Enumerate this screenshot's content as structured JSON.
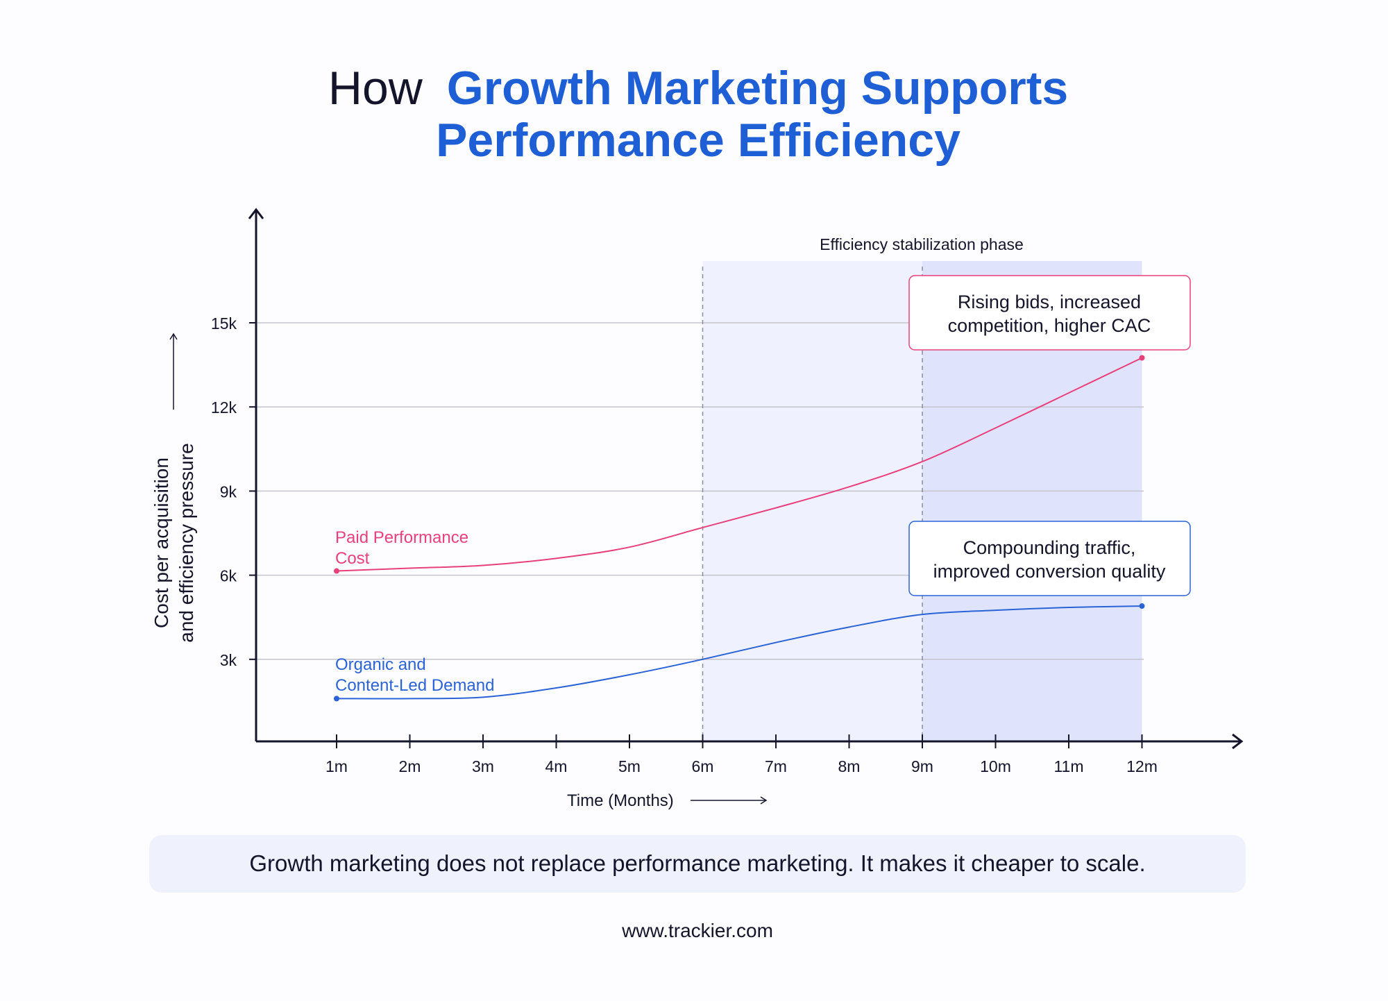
{
  "title": {
    "prefix": "How",
    "highlight_line1": "Growth Marketing Supports",
    "highlight_line2": "Performance Efficiency"
  },
  "colors": {
    "title_dark": "#14142b",
    "title_blue": "#1f5fd6",
    "paid": "#e8407a",
    "organic": "#2a63d6",
    "phase_light": "#eff1fe",
    "phase_dark": "#e0e3fc",
    "banner": "#eff1fd"
  },
  "chart_data": {
    "type": "line",
    "xlabel": "Time (Months)",
    "ylabel_line1": "Cost per acquisition",
    "ylabel_line2": "and efficiency pressure",
    "x": [
      "1m",
      "2m",
      "3m",
      "4m",
      "5m",
      "6m",
      "7m",
      "8m",
      "9m",
      "10m",
      "11m",
      "12m"
    ],
    "yticks": [
      3000,
      6000,
      9000,
      12000,
      15000
    ],
    "ytick_labels": [
      "3k",
      "6k",
      "9k",
      "12k",
      "15k"
    ],
    "ylim": [
      0,
      17000
    ],
    "grid": "horizontal",
    "series": [
      {
        "name_line1": "Paid Performance",
        "name_line2": "Cost",
        "color": "#e8407a",
        "values": [
          6150,
          6250,
          6350,
          6600,
          7000,
          7700,
          8400,
          9150,
          10050,
          11250,
          12500,
          13750
        ]
      },
      {
        "name_line1": "Organic and",
        "name_line2": "Content-Led Demand",
        "color": "#2a63d6",
        "values": [
          1600,
          1600,
          1650,
          1980,
          2450,
          3000,
          3600,
          4150,
          4600,
          4750,
          4850,
          4900
        ]
      }
    ],
    "phase": {
      "label": "Efficiency stabilization phase",
      "start": "6m",
      "mid": "9m",
      "end": "12m"
    },
    "annotations": [
      {
        "line1": "Rising bids, increased",
        "line2": "competition, higher CAC",
        "series": 0
      },
      {
        "line1": "Compounding traffic,",
        "line2": "improved conversion quality",
        "series": 1
      }
    ]
  },
  "banner": "Growth marketing does not replace performance marketing. It makes it cheaper to scale.",
  "footer": "www.trackier.com"
}
